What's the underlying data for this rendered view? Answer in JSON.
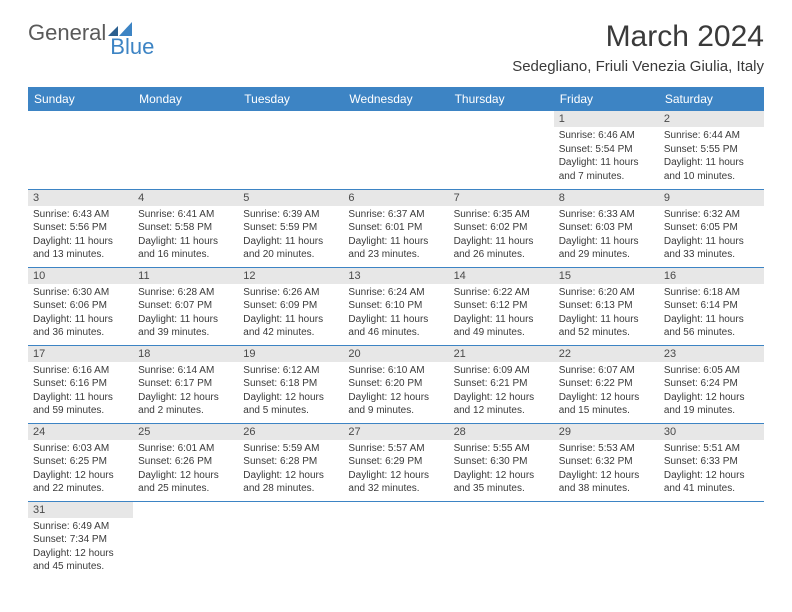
{
  "logo": {
    "text1": "General",
    "text2": "Blue"
  },
  "title": "March 2024",
  "location": "Sedegliano, Friuli Venezia Giulia, Italy",
  "colors": {
    "header_bg": "#3d84c4",
    "header_text": "#ffffff",
    "daynum_bg": "#e7e7e7",
    "text": "#3a3a3a",
    "logo_gray": "#5a5a5a",
    "logo_blue": "#3d84c4",
    "cell_border": "#3d84c4"
  },
  "day_headers": [
    "Sunday",
    "Monday",
    "Tuesday",
    "Wednesday",
    "Thursday",
    "Friday",
    "Saturday"
  ],
  "weeks": [
    [
      null,
      null,
      null,
      null,
      null,
      {
        "n": "1",
        "sunrise": "6:46 AM",
        "sunset": "5:54 PM",
        "daylight": "11 hours and 7 minutes."
      },
      {
        "n": "2",
        "sunrise": "6:44 AM",
        "sunset": "5:55 PM",
        "daylight": "11 hours and 10 minutes."
      }
    ],
    [
      {
        "n": "3",
        "sunrise": "6:43 AM",
        "sunset": "5:56 PM",
        "daylight": "11 hours and 13 minutes."
      },
      {
        "n": "4",
        "sunrise": "6:41 AM",
        "sunset": "5:58 PM",
        "daylight": "11 hours and 16 minutes."
      },
      {
        "n": "5",
        "sunrise": "6:39 AM",
        "sunset": "5:59 PM",
        "daylight": "11 hours and 20 minutes."
      },
      {
        "n": "6",
        "sunrise": "6:37 AM",
        "sunset": "6:01 PM",
        "daylight": "11 hours and 23 minutes."
      },
      {
        "n": "7",
        "sunrise": "6:35 AM",
        "sunset": "6:02 PM",
        "daylight": "11 hours and 26 minutes."
      },
      {
        "n": "8",
        "sunrise": "6:33 AM",
        "sunset": "6:03 PM",
        "daylight": "11 hours and 29 minutes."
      },
      {
        "n": "9",
        "sunrise": "6:32 AM",
        "sunset": "6:05 PM",
        "daylight": "11 hours and 33 minutes."
      }
    ],
    [
      {
        "n": "10",
        "sunrise": "6:30 AM",
        "sunset": "6:06 PM",
        "daylight": "11 hours and 36 minutes."
      },
      {
        "n": "11",
        "sunrise": "6:28 AM",
        "sunset": "6:07 PM",
        "daylight": "11 hours and 39 minutes."
      },
      {
        "n": "12",
        "sunrise": "6:26 AM",
        "sunset": "6:09 PM",
        "daylight": "11 hours and 42 minutes."
      },
      {
        "n": "13",
        "sunrise": "6:24 AM",
        "sunset": "6:10 PM",
        "daylight": "11 hours and 46 minutes."
      },
      {
        "n": "14",
        "sunrise": "6:22 AM",
        "sunset": "6:12 PM",
        "daylight": "11 hours and 49 minutes."
      },
      {
        "n": "15",
        "sunrise": "6:20 AM",
        "sunset": "6:13 PM",
        "daylight": "11 hours and 52 minutes."
      },
      {
        "n": "16",
        "sunrise": "6:18 AM",
        "sunset": "6:14 PM",
        "daylight": "11 hours and 56 minutes."
      }
    ],
    [
      {
        "n": "17",
        "sunrise": "6:16 AM",
        "sunset": "6:16 PM",
        "daylight": "11 hours and 59 minutes."
      },
      {
        "n": "18",
        "sunrise": "6:14 AM",
        "sunset": "6:17 PM",
        "daylight": "12 hours and 2 minutes."
      },
      {
        "n": "19",
        "sunrise": "6:12 AM",
        "sunset": "6:18 PM",
        "daylight": "12 hours and 5 minutes."
      },
      {
        "n": "20",
        "sunrise": "6:10 AM",
        "sunset": "6:20 PM",
        "daylight": "12 hours and 9 minutes."
      },
      {
        "n": "21",
        "sunrise": "6:09 AM",
        "sunset": "6:21 PM",
        "daylight": "12 hours and 12 minutes."
      },
      {
        "n": "22",
        "sunrise": "6:07 AM",
        "sunset": "6:22 PM",
        "daylight": "12 hours and 15 minutes."
      },
      {
        "n": "23",
        "sunrise": "6:05 AM",
        "sunset": "6:24 PM",
        "daylight": "12 hours and 19 minutes."
      }
    ],
    [
      {
        "n": "24",
        "sunrise": "6:03 AM",
        "sunset": "6:25 PM",
        "daylight": "12 hours and 22 minutes."
      },
      {
        "n": "25",
        "sunrise": "6:01 AM",
        "sunset": "6:26 PM",
        "daylight": "12 hours and 25 minutes."
      },
      {
        "n": "26",
        "sunrise": "5:59 AM",
        "sunset": "6:28 PM",
        "daylight": "12 hours and 28 minutes."
      },
      {
        "n": "27",
        "sunrise": "5:57 AM",
        "sunset": "6:29 PM",
        "daylight": "12 hours and 32 minutes."
      },
      {
        "n": "28",
        "sunrise": "5:55 AM",
        "sunset": "6:30 PM",
        "daylight": "12 hours and 35 minutes."
      },
      {
        "n": "29",
        "sunrise": "5:53 AM",
        "sunset": "6:32 PM",
        "daylight": "12 hours and 38 minutes."
      },
      {
        "n": "30",
        "sunrise": "5:51 AM",
        "sunset": "6:33 PM",
        "daylight": "12 hours and 41 minutes."
      }
    ],
    [
      {
        "n": "31",
        "sunrise": "6:49 AM",
        "sunset": "7:34 PM",
        "daylight": "12 hours and 45 minutes."
      },
      null,
      null,
      null,
      null,
      null,
      null
    ]
  ],
  "labels": {
    "sunrise": "Sunrise:",
    "sunset": "Sunset:",
    "daylight": "Daylight:"
  }
}
